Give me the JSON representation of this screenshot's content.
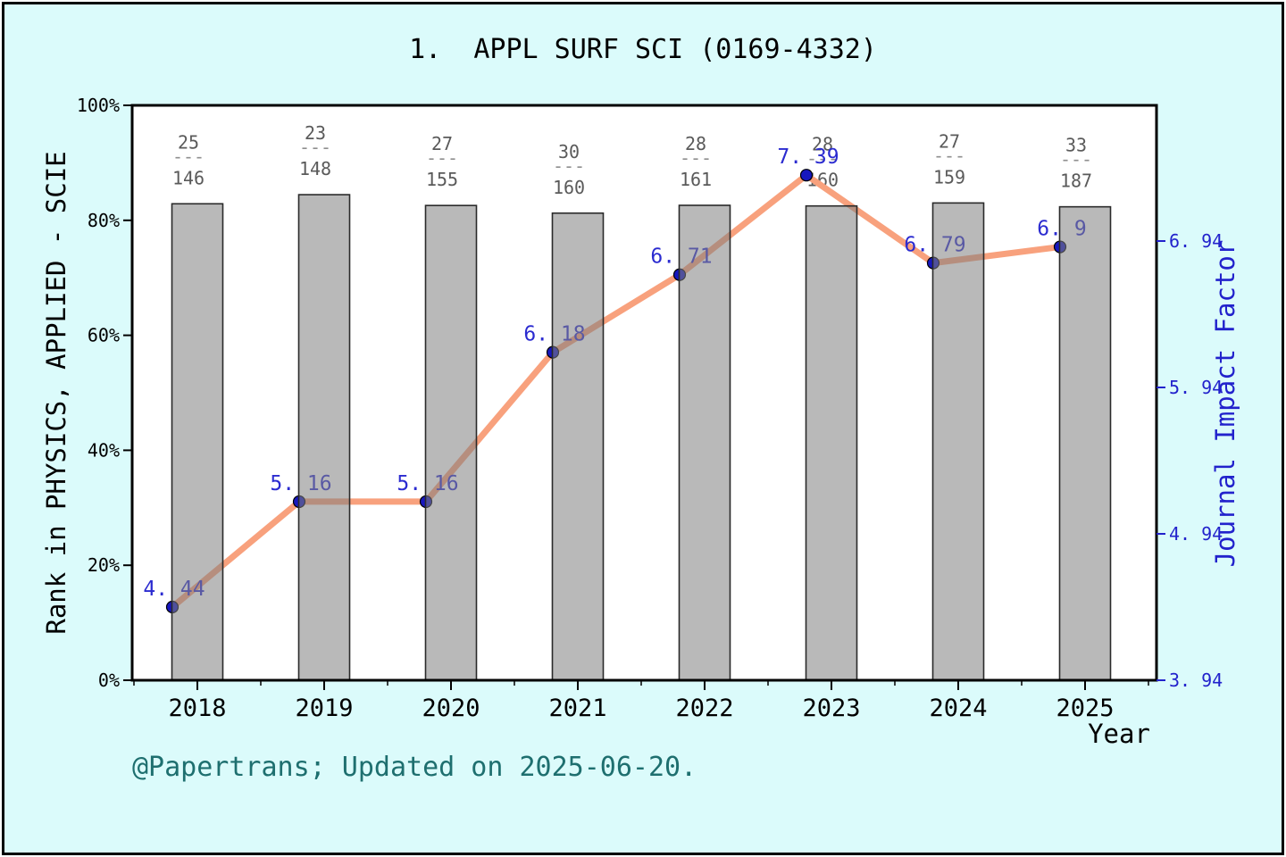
{
  "header": {
    "title_display": "1.  APPL SURF SCI (0169-4332)"
  },
  "footer": {
    "text": "@Papertrans; Updated on 2025-06-20."
  },
  "axes": {
    "x_title": "Year",
    "left_title": "Rank in PHYSICS, APPLIED - SCIE",
    "right_title": "Journal Impact Factor"
  },
  "chart_data": {
    "type": "bar+line",
    "title": "1. APPL SURF SCI (0169-4332)",
    "categories": [
      "2018",
      "2019",
      "2020",
      "2021",
      "2022",
      "2023",
      "2024",
      "2025"
    ],
    "xlabel": "Year",
    "grid": false,
    "legend": "none",
    "series": [
      {
        "name": "Rank in PHYSICS, APPLIED - SCIE",
        "type": "bar",
        "axis": "left",
        "rank_fractions": [
          {
            "rank": 25,
            "of": 146
          },
          {
            "rank": 23,
            "of": 148
          },
          {
            "rank": 27,
            "of": 155
          },
          {
            "rank": 30,
            "of": 160
          },
          {
            "rank": 28,
            "of": 161
          },
          {
            "rank": 28,
            "of": 160
          },
          {
            "rank": 27,
            "of": 159
          },
          {
            "rank": 33,
            "of": 187
          }
        ],
        "bar_percentile_values": [
          82.9,
          84.5,
          82.6,
          81.3,
          82.6,
          82.5,
          83.0,
          82.4
        ]
      },
      {
        "name": "Journal Impact Factor",
        "type": "line",
        "axis": "right",
        "values": [
          4.44,
          5.16,
          5.16,
          6.18,
          6.71,
          7.39,
          6.79,
          6.9
        ],
        "point_labels": [
          "4. 44",
          "5. 16",
          "5. 16",
          "6. 18",
          "6. 71",
          "7. 39",
          "6. 79",
          "6. 9"
        ]
      }
    ],
    "left_axis": {
      "title": "Rank in PHYSICS, APPLIED - SCIE",
      "tick_labels": [
        "0%",
        "20%",
        "40%",
        "60%",
        "80%",
        "100%"
      ],
      "tick_values": [
        0,
        20,
        40,
        60,
        80,
        100
      ],
      "range": [
        0,
        100
      ]
    },
    "right_axis": {
      "title": "Journal Impact Factor",
      "tick_labels": [
        "3. 94",
        "4. 94",
        "5. 94",
        "6. 94"
      ],
      "tick_values": [
        3.94,
        4.94,
        5.94,
        6.94
      ]
    },
    "x_axis": {
      "title": "Year",
      "tick_labels": [
        "2018",
        "2019",
        "2020",
        "2021",
        "2022",
        "2023",
        "2024",
        "2025"
      ]
    },
    "colors": {
      "background": "#DBFBFB",
      "plot_background": "#FFFFFF",
      "frame_border": "#000000",
      "bar_fill": "#808080",
      "bar_fill_opacity": 0.55,
      "bar_edge": "#2A2A2A",
      "line": "#F8A17D",
      "marker": "#1717BE",
      "marker_edge": "#000000",
      "point_label": "#2B2BD0",
      "right_axis_text": "#2222CC",
      "fraction_text": "#5A5A5A",
      "fraction_dash": "#8F8F8F",
      "axis_text": "#000000",
      "footer_text": "#1E6F6F"
    }
  }
}
